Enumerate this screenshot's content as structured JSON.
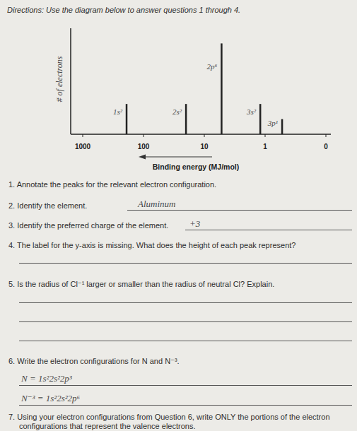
{
  "header": {
    "directions": "Directions: Use the diagram below to answer questions 1 through 4."
  },
  "chart_data": {
    "type": "stem",
    "x_label": "Binding energy (MJ/mol)",
    "y_label": "# of electrons",
    "x": [
      190,
      20,
      5.2,
      1.2,
      0.72
    ],
    "values": [
      2,
      2,
      6,
      2,
      1
    ],
    "annotations": [
      "1s²",
      "2s²",
      "2p⁶",
      "3s²",
      "3p¹"
    ],
    "xlim": [
      1000,
      0
    ],
    "xticks": [
      1000,
      100,
      10,
      1,
      0
    ],
    "ylim": [
      0,
      7
    ],
    "log": "x",
    "tick_labels": "x",
    "color": "#222222"
  },
  "questions": [
    {
      "number": "1.",
      "text": "Annotate the peaks for the relevant electron configuration."
    },
    {
      "number": "2.",
      "text": "Identify the element.",
      "answers": [
        "Aluminum"
      ]
    },
    {
      "number": "3.",
      "text": "Identify the preferred charge of the element.",
      "answers": [
        "+3"
      ]
    },
    {
      "number": "4.",
      "text": "The label for the y-axis is missing. What does the height of each peak represent?"
    },
    {
      "number": "5.",
      "text": "Is the radius of Cl⁻¹ larger or smaller than the radius of neutral Cl? Explain."
    },
    {
      "number": "6.",
      "text": "Write the electron configurations for N and N⁻³.",
      "answers": [
        "N = 1s²2s²2p³",
        "N⁻³ = 1s²2s²2p⁶"
      ]
    },
    {
      "number": "7.",
      "text": "Using your electron configurations from Question 6, write ONLY the portions of the electron configurations that represent the valence electrons."
    }
  ]
}
